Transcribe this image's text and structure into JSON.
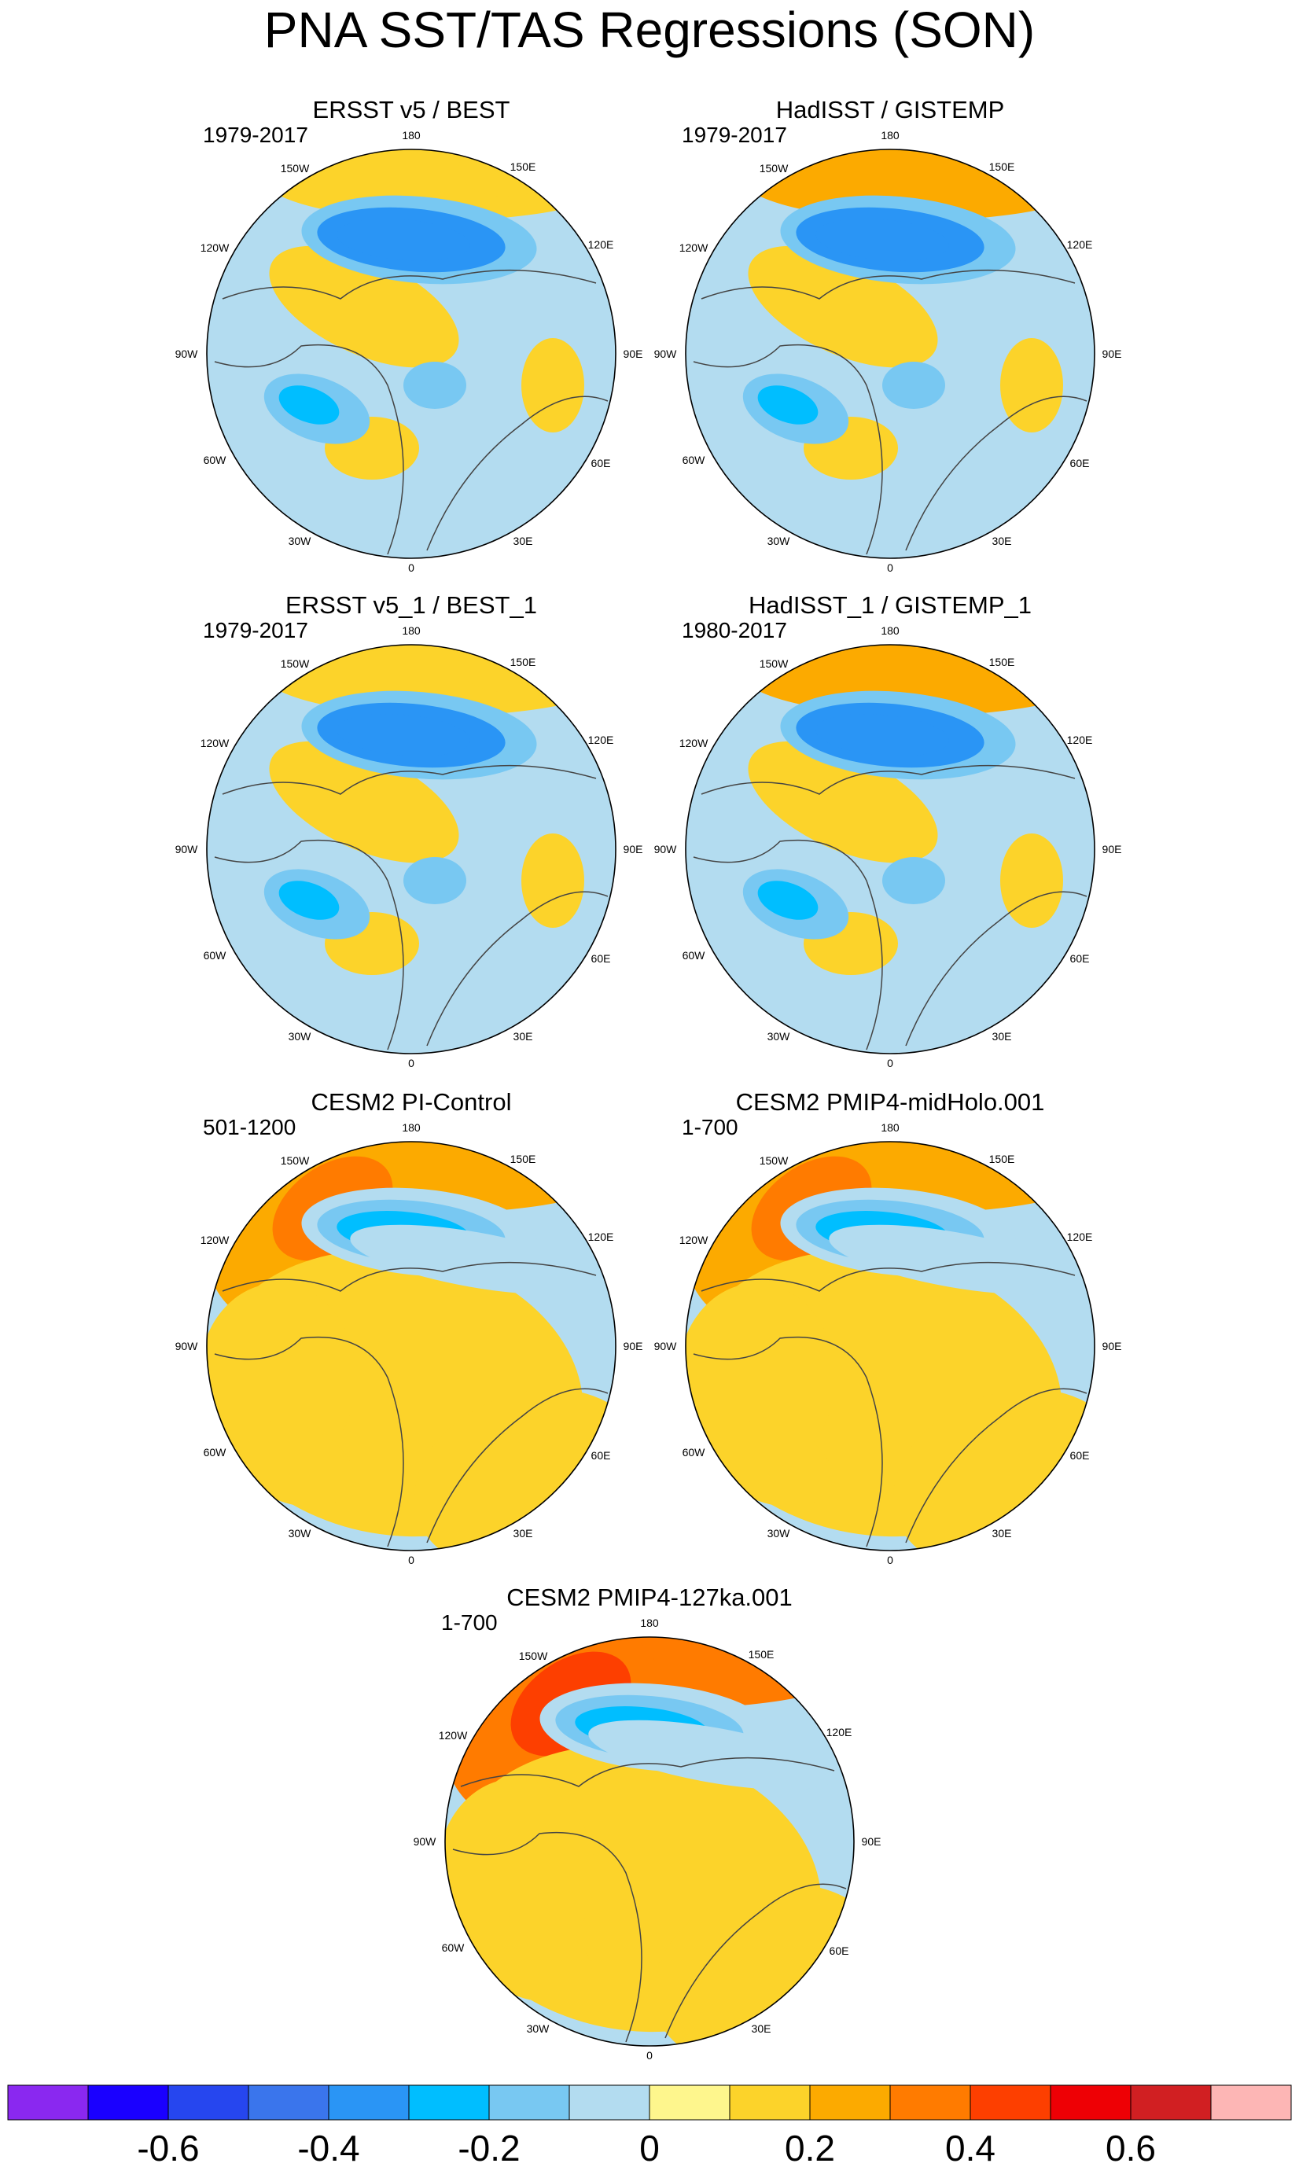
{
  "title": "PNA SST/TAS Regressions (SON)",
  "chart_data": {
    "type": "heatmap",
    "projection": "north-polar-stereographic",
    "title": "PNA SST/TAS Regressions (SON)",
    "longitude_labels": [
      "180",
      "150E",
      "120E",
      "90E",
      "60E",
      "30E",
      "0",
      "30W",
      "60W",
      "90W",
      "120W",
      "150W"
    ],
    "panels": [
      {
        "title": "ERSST v5 / BEST",
        "years": "1979-2017",
        "features": {
          "aleutian_low": -0.4,
          "north_pacific_arc": 0.15,
          "canada": 0.15,
          "labrador": -0.3,
          "atlantic": 0.1,
          "eurasia": -0.1
        }
      },
      {
        "title": "HadISST / GISTEMP",
        "years": "1979-2017",
        "features": {
          "aleutian_low": -0.4,
          "north_pacific_arc": 0.2,
          "canada": 0.15,
          "labrador": -0.25,
          "atlantic": 0.1,
          "eurasia": -0.1
        }
      },
      {
        "title": "ERSST v5_1 / BEST_1",
        "years": "1979-2017",
        "features": {
          "aleutian_low": -0.4,
          "north_pacific_arc": 0.15,
          "canada": 0.1,
          "labrador": -0.25,
          "atlantic": 0.1,
          "eurasia": -0.1
        }
      },
      {
        "title": "HadISST_1 / GISTEMP_1",
        "years": "1980-2017",
        "features": {
          "aleutian_low": -0.4,
          "north_pacific_arc": 0.2,
          "canada": 0.1,
          "labrador": -0.25,
          "atlantic": 0.1,
          "eurasia": -0.1
        }
      },
      {
        "title": "CESM2 PI-Control",
        "years": "501-1200",
        "features": {
          "aleutian_low": -0.3,
          "north_pacific_arc": 0.25,
          "canada": 0.1,
          "labrador": 0.15,
          "atlantic": 0.1,
          "eurasia": 0.1
        }
      },
      {
        "title": "CESM2 PMIP4-midHolo.001",
        "years": "1-700",
        "features": {
          "aleutian_low": -0.3,
          "north_pacific_arc": 0.25,
          "canada": 0.1,
          "labrador": 0.15,
          "atlantic": 0.1,
          "eurasia": 0.1
        }
      },
      {
        "title": "CESM2 PMIP4-127ka.001",
        "years": "1-700",
        "features": {
          "aleutian_low": -0.3,
          "north_pacific_arc": 0.3,
          "canada": 0.1,
          "labrador": 0.15,
          "atlantic": 0.1,
          "eurasia": 0.1
        }
      }
    ],
    "colorbar": {
      "levels": [
        -0.7,
        -0.6,
        -0.5,
        -0.4,
        -0.3,
        -0.2,
        -0.1,
        0,
        0.1,
        0.2,
        0.3,
        0.4,
        0.5,
        0.6,
        0.7
      ],
      "colors": [
        "#8a28f0",
        "#1a00ff",
        "#2646ef",
        "#3a75ec",
        "#2a95f5",
        "#00beff",
        "#78c8f2",
        "#b3dcf0",
        "#fef68d",
        "#fcd32a",
        "#fcaa00",
        "#ff7b00",
        "#fd3f00",
        "#ee0005",
        "#d11f22",
        "#fdb6b5"
      ],
      "tick_values": [
        -0.6,
        -0.4,
        -0.2,
        0,
        0.2,
        0.4,
        0.6
      ],
      "tick_labels": [
        "-0.6",
        "-0.4",
        "-0.2",
        "0",
        "0.2",
        "0.4",
        "0.6"
      ]
    }
  }
}
